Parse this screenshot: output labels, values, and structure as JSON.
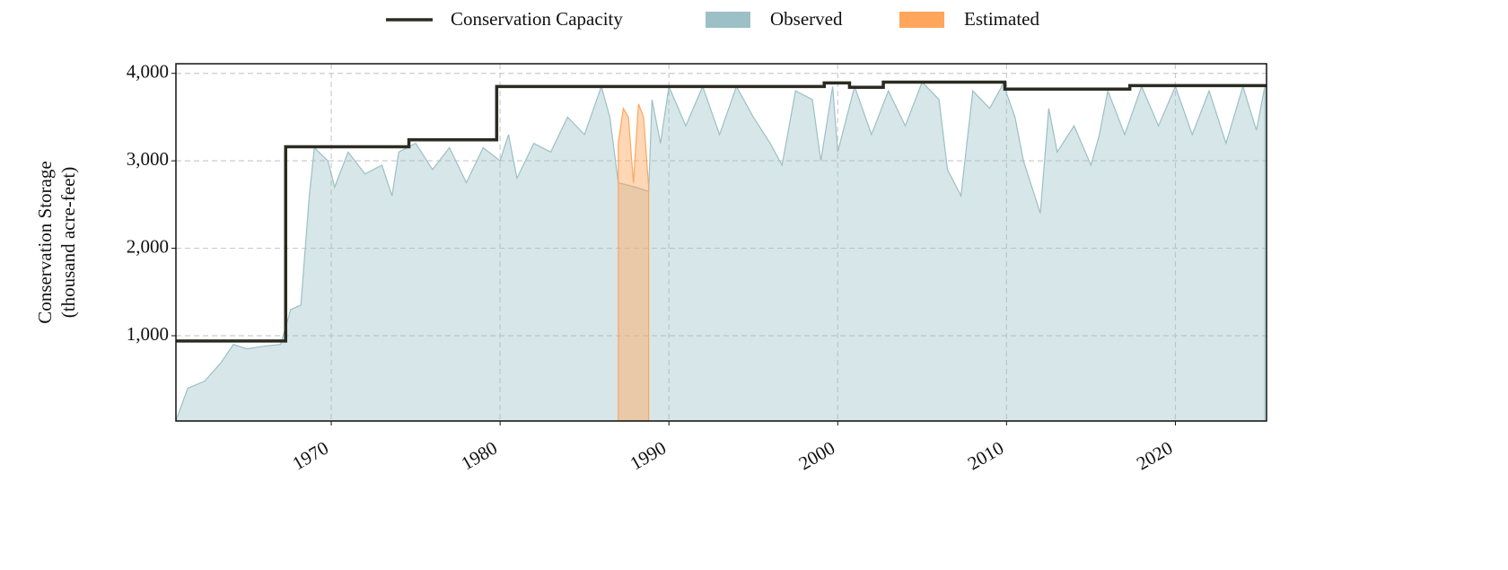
{
  "chart_data": {
    "type": "area",
    "y_label": [
      "Conservation Storage",
      "(thousand acre-feet)"
    ],
    "xlim": [
      1960.8,
      2025.4
    ],
    "ylim": [
      25,
      4110
    ],
    "xticks": [
      1970,
      1980,
      1990,
      2000,
      2010,
      2020
    ],
    "yticks": [
      {
        "value": 1000,
        "label": "1,000"
      },
      {
        "value": 2000,
        "label": "2,000"
      },
      {
        "value": 3000,
        "label": "3,000"
      },
      {
        "value": 4000,
        "label": "4,000"
      }
    ],
    "grid": true,
    "legend": "top",
    "series": [
      {
        "name": "Conservation Capacity",
        "color": "#2b2b22",
        "kind": "step",
        "x": [
          1960.8,
          1967.3,
          1974.6,
          1979.8,
          1999.2,
          2000.7,
          2002.7,
          2009.9,
          2017.3,
          2025.4
        ],
        "values": [
          940,
          3160,
          3240,
          3850,
          3890,
          3840,
          3900,
          3820,
          3860,
          3860
        ]
      },
      {
        "name": "Observed",
        "color": "#9bc0c6",
        "kind": "area",
        "x": [
          1960.8,
          1961.5,
          1962.5,
          1963.5,
          1964.2,
          1965,
          1966,
          1967,
          1967.6,
          1968.2,
          1968.7,
          1969,
          1969.8,
          1970.2,
          1971,
          1972,
          1973,
          1973.6,
          1974,
          1975,
          1976,
          1977,
          1978,
          1979,
          1980,
          1980.5,
          1981,
          1982,
          1983,
          1984,
          1985,
          1986,
          1986.5,
          1987,
          1988,
          1988.8,
          1989,
          1989.5,
          1990,
          1991,
          1992,
          1993,
          1994,
          1995,
          1996,
          1996.7,
          1997.5,
          1998.5,
          1999,
          1999.7,
          2000,
          2001,
          2002,
          2003,
          2004,
          2005,
          2006,
          2006.5,
          2007.3,
          2008,
          2009,
          2009.8,
          2010.5,
          2011,
          2012,
          2012.5,
          2013,
          2014,
          2015,
          2015.5,
          2016,
          2017,
          2018,
          2019,
          2020,
          2021,
          2022,
          2023,
          2024,
          2024.8,
          2025.3
        ],
        "values": [
          30,
          400,
          480,
          700,
          900,
          850,
          880,
          900,
          1300,
          1350,
          2600,
          3150,
          3000,
          2700,
          3100,
          2850,
          2950,
          2600,
          3100,
          3200,
          2900,
          3150,
          2750,
          3150,
          3000,
          3300,
          2800,
          3200,
          3100,
          3500,
          3300,
          3850,
          3500,
          2750,
          2700,
          2650,
          3700,
          3200,
          3850,
          3400,
          3850,
          3300,
          3850,
          3500,
          3200,
          2950,
          3800,
          3700,
          3000,
          3850,
          3100,
          3850,
          3300,
          3800,
          3400,
          3900,
          3700,
          2900,
          2600,
          3800,
          3600,
          3880,
          3500,
          3000,
          2400,
          3600,
          3100,
          3400,
          2950,
          3300,
          3800,
          3300,
          3850,
          3400,
          3850,
          3300,
          3800,
          3200,
          3850,
          3350,
          3850
        ]
      },
      {
        "name": "Estimated",
        "color": "#ffa65c",
        "kind": "area",
        "x": [
          1987,
          1987.3,
          1987.6,
          1987.9,
          1988.2,
          1988.5,
          1988.8
        ],
        "values": [
          3200,
          3600,
          3500,
          2750,
          3650,
          3500,
          2700
        ]
      }
    ]
  }
}
